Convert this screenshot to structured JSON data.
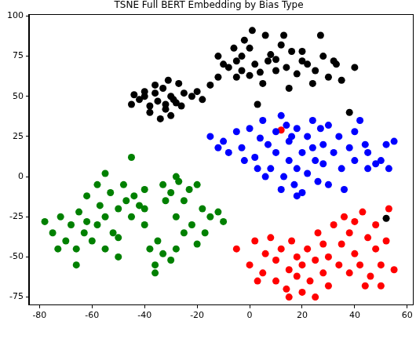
{
  "chart_data": {
    "type": "scatter",
    "title": "TSNE Full BERT Embedding by Bias Type",
    "xlim": [
      -84,
      62
    ],
    "xticks": [
      -80,
      -60,
      -40,
      -20,
      0,
      20,
      40,
      60
    ],
    "ylim": [
      -80,
      101
    ],
    "yticks": [
      -75,
      -50,
      -25,
      0,
      25,
      50,
      75,
      100
    ],
    "grid": false,
    "marker": "circle",
    "series": [
      {
        "color": "#000000",
        "points": [
          [
            -45,
            45
          ],
          [
            -42,
            48
          ],
          [
            -40,
            50
          ],
          [
            -38,
            44
          ],
          [
            -36,
            52
          ],
          [
            -35,
            47
          ],
          [
            -33,
            55
          ],
          [
            -32,
            42
          ],
          [
            -30,
            50
          ],
          [
            -28,
            46
          ],
          [
            -27,
            58
          ],
          [
            -25,
            52
          ],
          [
            -38,
            40
          ],
          [
            -34,
            36
          ],
          [
            -31,
            60
          ],
          [
            -29,
            48
          ],
          [
            -26,
            44
          ],
          [
            -40,
            53
          ],
          [
            -36,
            57
          ],
          [
            -32,
            45
          ],
          [
            -44,
            51
          ],
          [
            -30,
            38
          ],
          [
            -22,
            50
          ],
          [
            -20,
            53
          ],
          [
            -18,
            48
          ],
          [
            -15,
            57
          ],
          [
            -12,
            62
          ],
          [
            -8,
            68
          ],
          [
            -5,
            72
          ],
          [
            -3,
            75
          ],
          [
            0,
            80
          ],
          [
            2,
            70
          ],
          [
            4,
            65
          ],
          [
            6,
            88
          ],
          [
            8,
            76
          ],
          [
            10,
            73
          ],
          [
            12,
            82
          ],
          [
            14,
            68
          ],
          [
            16,
            78
          ],
          [
            18,
            64
          ],
          [
            20,
            72
          ],
          [
            22,
            70
          ],
          [
            25,
            66
          ],
          [
            28,
            75
          ],
          [
            30,
            62
          ],
          [
            33,
            70
          ],
          [
            35,
            60
          ],
          [
            5,
            58
          ],
          [
            -2,
            85
          ],
          [
            1,
            91
          ],
          [
            20,
            78
          ],
          [
            15,
            55
          ],
          [
            0,
            63
          ],
          [
            -10,
            70
          ],
          [
            3,
            45
          ],
          [
            38,
            40
          ],
          [
            27,
            88
          ],
          [
            -5,
            62
          ],
          [
            10,
            66
          ],
          [
            24,
            58
          ],
          [
            32,
            72
          ],
          [
            40,
            68
          ],
          [
            -12,
            75
          ],
          [
            -6,
            80
          ],
          [
            13,
            88
          ],
          [
            7,
            72
          ],
          [
            -3,
            66
          ],
          [
            52,
            -26
          ]
        ]
      },
      {
        "color": "#0000ff",
        "points": [
          [
            -15,
            25
          ],
          [
            -10,
            22
          ],
          [
            -5,
            28
          ],
          [
            -3,
            18
          ],
          [
            0,
            30
          ],
          [
            2,
            12
          ],
          [
            4,
            24
          ],
          [
            5,
            35
          ],
          [
            7,
            20
          ],
          [
            8,
            5
          ],
          [
            10,
            28
          ],
          [
            10,
            15
          ],
          [
            12,
            38
          ],
          [
            13,
            0
          ],
          [
            15,
            22
          ],
          [
            15,
            10
          ],
          [
            17,
            -5
          ],
          [
            18,
            30
          ],
          [
            18,
            5
          ],
          [
            20,
            15
          ],
          [
            20,
            -10
          ],
          [
            22,
            25
          ],
          [
            22,
            2
          ],
          [
            24,
            35
          ],
          [
            25,
            10
          ],
          [
            26,
            -3
          ],
          [
            28,
            20
          ],
          [
            28,
            8
          ],
          [
            30,
            32
          ],
          [
            30,
            -5
          ],
          [
            32,
            15
          ],
          [
            34,
            25
          ],
          [
            35,
            5
          ],
          [
            36,
            -8
          ],
          [
            38,
            18
          ],
          [
            40,
            10
          ],
          [
            40,
            28
          ],
          [
            42,
            35
          ],
          [
            44,
            20
          ],
          [
            45,
            5
          ],
          [
            48,
            8
          ],
          [
            50,
            10
          ],
          [
            52,
            20
          ],
          [
            55,
            22
          ],
          [
            53,
            5
          ],
          [
            -8,
            15
          ],
          [
            -12,
            18
          ],
          [
            6,
            0
          ],
          [
            12,
            -8
          ],
          [
            18,
            -12
          ],
          [
            24,
            18
          ],
          [
            16,
            25
          ],
          [
            3,
            5
          ],
          [
            27,
            30
          ],
          [
            45,
            15
          ],
          [
            14,
            32
          ],
          [
            -2,
            10
          ]
        ]
      },
      {
        "color": "#008000",
        "points": [
          [
            -78,
            -28
          ],
          [
            -75,
            -35
          ],
          [
            -72,
            -25
          ],
          [
            -70,
            -40
          ],
          [
            -68,
            -30
          ],
          [
            -66,
            -45
          ],
          [
            -65,
            -22
          ],
          [
            -63,
            -35
          ],
          [
            -62,
            -28
          ],
          [
            -60,
            -40
          ],
          [
            -58,
            -30
          ],
          [
            -57,
            -18
          ],
          [
            -55,
            -25
          ],
          [
            -55,
            -45
          ],
          [
            -53,
            -10
          ],
          [
            -52,
            -35
          ],
          [
            -50,
            -20
          ],
          [
            -48,
            -5
          ],
          [
            -47,
            -15
          ],
          [
            -45,
            -25
          ],
          [
            -44,
            -12
          ],
          [
            -42,
            -18
          ],
          [
            -40,
            -8
          ],
          [
            -40,
            -30
          ],
          [
            -38,
            -45
          ],
          [
            -36,
            -55
          ],
          [
            -35,
            -40
          ],
          [
            -33,
            -48
          ],
          [
            -33,
            -5
          ],
          [
            -32,
            -15
          ],
          [
            -30,
            -10
          ],
          [
            -30,
            -52
          ],
          [
            -28,
            -25
          ],
          [
            -27,
            -3
          ],
          [
            -25,
            -35
          ],
          [
            -25,
            -15
          ],
          [
            -23,
            -8
          ],
          [
            -22,
            -30
          ],
          [
            -20,
            -42
          ],
          [
            -18,
            -20
          ],
          [
            -17,
            -35
          ],
          [
            -15,
            -25
          ],
          [
            -12,
            -22
          ],
          [
            -10,
            -28
          ],
          [
            -20,
            -5
          ],
          [
            -55,
            2
          ],
          [
            -58,
            -5
          ],
          [
            -45,
            12
          ],
          [
            -50,
            -50
          ],
          [
            -66,
            -55
          ],
          [
            -36,
            -60
          ],
          [
            -28,
            -45
          ],
          [
            -73,
            -45
          ],
          [
            -62,
            -12
          ],
          [
            -40,
            -20
          ],
          [
            -50,
            -38
          ],
          [
            -28,
            0
          ]
        ]
      },
      {
        "color": "#ff0000",
        "points": [
          [
            -5,
            -45
          ],
          [
            0,
            -55
          ],
          [
            2,
            -40
          ],
          [
            5,
            -60
          ],
          [
            6,
            -48
          ],
          [
            8,
            -38
          ],
          [
            10,
            -65
          ],
          [
            10,
            -52
          ],
          [
            12,
            -45
          ],
          [
            14,
            -70
          ],
          [
            15,
            -58
          ],
          [
            16,
            -40
          ],
          [
            18,
            -62
          ],
          [
            18,
            -50
          ],
          [
            20,
            -72
          ],
          [
            20,
            -55
          ],
          [
            22,
            -45
          ],
          [
            23,
            -65
          ],
          [
            25,
            -52
          ],
          [
            26,
            -35
          ],
          [
            28,
            -60
          ],
          [
            28,
            -42
          ],
          [
            30,
            -68
          ],
          [
            30,
            -50
          ],
          [
            32,
            -30
          ],
          [
            34,
            -55
          ],
          [
            35,
            -42
          ],
          [
            36,
            -25
          ],
          [
            38,
            -60
          ],
          [
            38,
            -35
          ],
          [
            40,
            -48
          ],
          [
            40,
            -28
          ],
          [
            42,
            -55
          ],
          [
            43,
            -22
          ],
          [
            45,
            -38
          ],
          [
            46,
            -62
          ],
          [
            48,
            -45
          ],
          [
            48,
            -30
          ],
          [
            50,
            -55
          ],
          [
            50,
            -68
          ],
          [
            52,
            -40
          ],
          [
            53,
            -20
          ],
          [
            55,
            -58
          ],
          [
            15,
            -75
          ],
          [
            25,
            -75
          ],
          [
            3,
            -65
          ],
          [
            44,
            -68
          ],
          [
            12,
            29
          ]
        ]
      }
    ]
  }
}
